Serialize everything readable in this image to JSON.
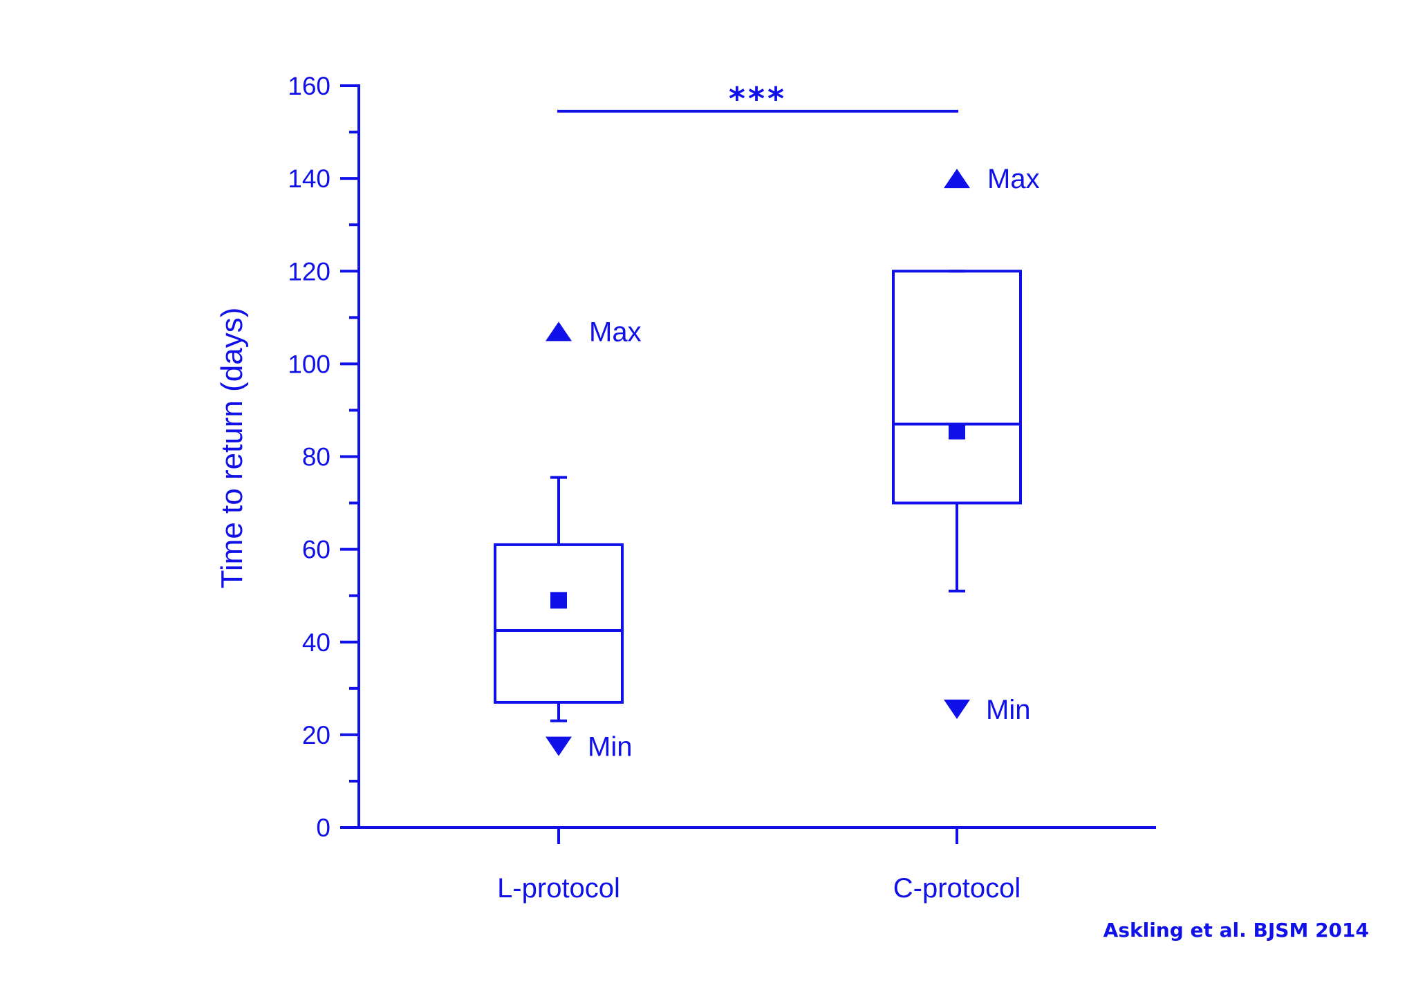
{
  "chart_data": {
    "type": "box",
    "ylabel": "Time to return (days)",
    "xlabel": "",
    "ylim": [
      0,
      160
    ],
    "y_ticks": [
      0,
      20,
      40,
      60,
      80,
      100,
      120,
      140,
      160
    ],
    "y_tick_labels": [
      "0",
      "20",
      "40",
      "60",
      "80",
      "100",
      "120",
      "140",
      "160"
    ],
    "y_minor_step": 10,
    "categories": [
      "L-protocol",
      "C-protocol"
    ],
    "boxes": [
      {
        "category": "L-protocol",
        "whisker_low": 23,
        "q1": 27,
        "median": 42.5,
        "q3": 61,
        "whisker_high": 75.5,
        "mean": 49,
        "max": 107,
        "min": 17.5,
        "max_label": "Max",
        "min_label": "Min"
      },
      {
        "category": "C-protocol",
        "whisker_low": 51,
        "q1": 70,
        "median": 87,
        "q3": 120,
        "whisker_high": 120,
        "mean": 85.5,
        "max": 140,
        "min": 25.5,
        "max_label": "Max",
        "min_label": "Min"
      }
    ],
    "significance": {
      "y": 154.5,
      "label": "***",
      "from": "L-protocol",
      "to": "C-protocol"
    },
    "color": "#1010e8",
    "grid": false
  },
  "citation": "Askling et al. BJSM 2014"
}
